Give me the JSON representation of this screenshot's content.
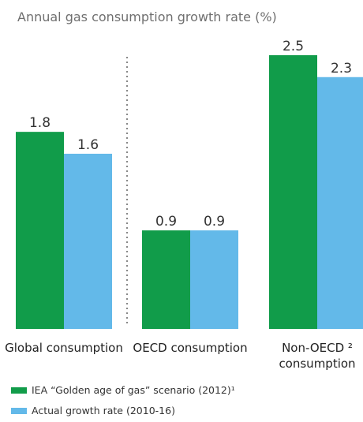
{
  "chart_data": {
    "type": "bar",
    "title": "Annual gas consumption growth rate (%)",
    "categories": [
      "Global consumption",
      "OECD consumption",
      "Non-OECD ² consumption"
    ],
    "category_lines": [
      [
        "Global consumption"
      ],
      [
        "OECD consumption"
      ],
      [
        "Non-OECD ²",
        "consumption"
      ]
    ],
    "series": [
      {
        "name": "IEA “Golden age of gas” scenario (2012)¹",
        "values": [
          1.8,
          0.9,
          2.5
        ],
        "labels": [
          "1.8",
          "0.9",
          "2.5"
        ],
        "color": "#119c4a"
      },
      {
        "name": "Actual growth rate (2010-16)",
        "values": [
          1.6,
          0.9,
          2.3
        ],
        "labels": [
          "1.6",
          "0.9",
          "2.3"
        ],
        "color": "#63b9e9"
      }
    ],
    "ylim": [
      0,
      2.5
    ],
    "grid": false,
    "divider": "dotted line between first and second group",
    "legend_position": "bottom-left"
  }
}
